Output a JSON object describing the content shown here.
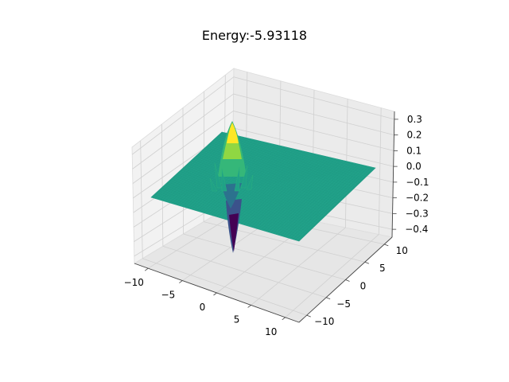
{
  "chart_data": {
    "type": "surface3d",
    "title": "Energy:-5.93118",
    "xlabel": "",
    "ylabel": "",
    "zlabel": "",
    "x_ticks": [
      -10,
      -5,
      0,
      5,
      10
    ],
    "y_ticks": [
      -10,
      -5,
      0,
      5,
      10
    ],
    "z_ticks": [
      0.3,
      0.2,
      0.1,
      0.0,
      -0.1,
      -0.2,
      -0.3,
      -0.4
    ],
    "x_tick_labels": [
      "−10",
      "−5",
      "0",
      "5",
      "10"
    ],
    "y_tick_labels": [
      "−10",
      "−5",
      "0",
      "5",
      "10"
    ],
    "z_tick_labels": [
      "0.3",
      "0.2",
      "0.1",
      "0.0",
      "−0.1",
      "−0.2",
      "−0.3",
      "−0.4"
    ],
    "xlim": [
      -12,
      12
    ],
    "ylim": [
      -12,
      12
    ],
    "zlim": [
      -0.45,
      0.35
    ],
    "grid": true,
    "colormap": "viridis",
    "surface_base_color": "#21a088",
    "peak_value": 0.31,
    "trough_value": -0.42
  }
}
